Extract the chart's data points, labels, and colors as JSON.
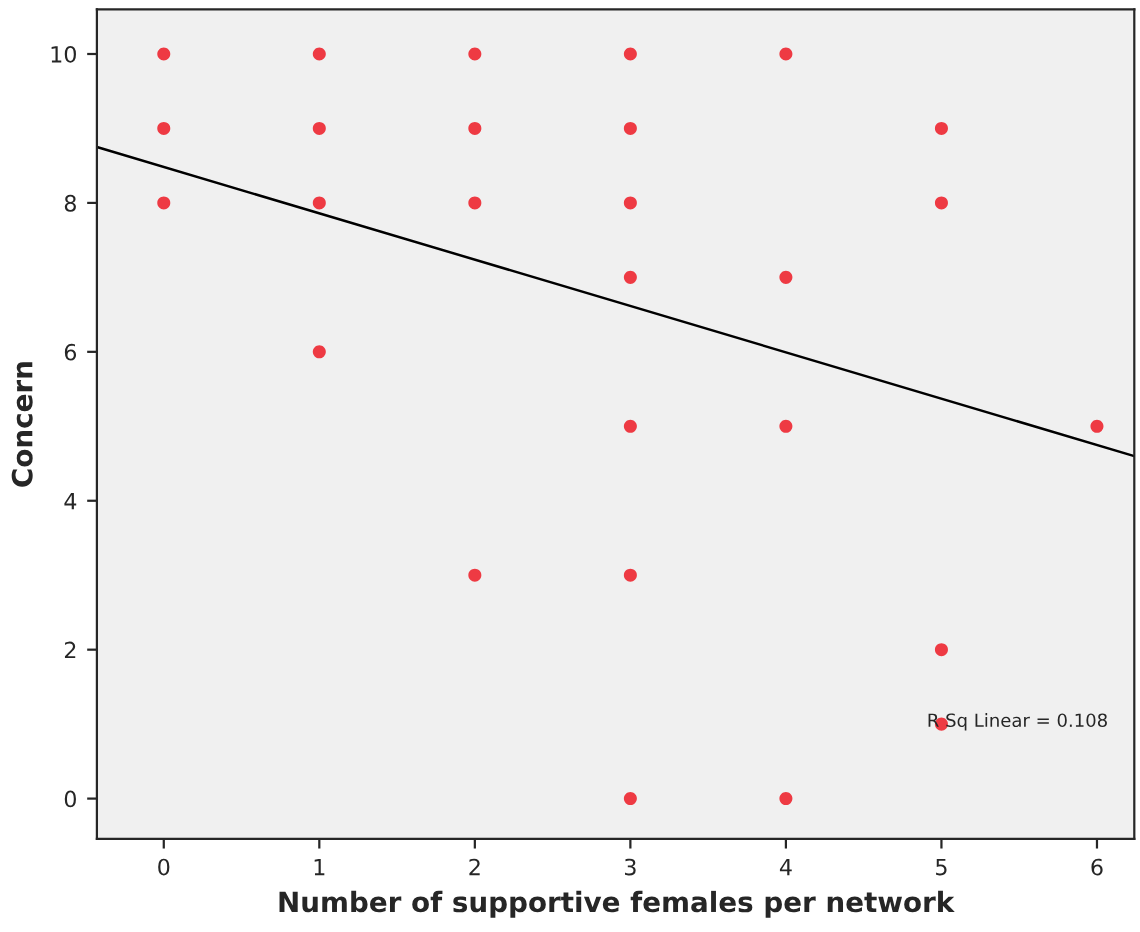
{
  "chart_data": {
    "type": "scatter",
    "xlabel": "Number of supportive females per network",
    "ylabel": "Concern",
    "xlim": [
      -0.43,
      6.24
    ],
    "ylim": [
      -0.54,
      10.6
    ],
    "xticks": [
      0,
      1,
      2,
      3,
      4,
      5,
      6
    ],
    "yticks": [
      0,
      2,
      4,
      6,
      8,
      10
    ],
    "grid": false,
    "series": [
      {
        "marker": "circle",
        "color": "#ee3a43",
        "x": [
          0,
          0,
          0,
          1,
          1,
          1,
          1,
          2,
          2,
          2,
          2,
          3,
          3,
          3,
          3,
          3,
          3,
          3,
          4,
          4,
          4,
          4,
          5,
          5,
          5,
          5,
          6
        ],
        "values": [
          10,
          9,
          8,
          10,
          9,
          8,
          6,
          10,
          9,
          8,
          3,
          10,
          9,
          8,
          7,
          5,
          3,
          0,
          10,
          7,
          5,
          0,
          9,
          8,
          2,
          1,
          5
        ]
      },
      {
        "type": "line",
        "color": "#000000",
        "x": [
          -0.43,
          6.24
        ],
        "values": [
          8.75,
          4.6
        ]
      }
    ],
    "annotations": [
      "R Sq Linear = 0.108"
    ]
  }
}
